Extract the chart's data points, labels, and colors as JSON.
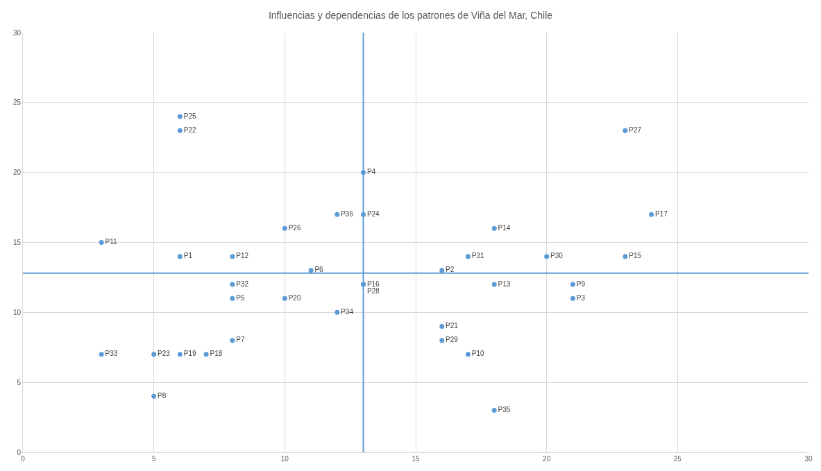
{
  "chart_data": {
    "type": "scatter",
    "title": "Influencias y dependencias de los patrones de Viña del Mar, Chile",
    "x": [
      6,
      16,
      21,
      13,
      8,
      11,
      8,
      5,
      21,
      17,
      3,
      8,
      18,
      18,
      23,
      13,
      24,
      7,
      6,
      10,
      16,
      6,
      5,
      13,
      6,
      10,
      23,
      13,
      16,
      20,
      17,
      8,
      3,
      12,
      18,
      12
    ],
    "values": [
      14,
      13,
      11,
      20,
      11,
      13,
      8,
      4,
      12,
      7,
      15,
      14,
      12,
      16,
      14,
      12,
      17,
      7,
      7,
      11,
      9,
      23,
      7,
      17,
      24,
      16,
      23,
      12,
      8,
      14,
      14,
      12,
      7,
      10,
      3,
      17
    ],
    "value_labels": [
      "P1",
      "P2",
      "P3",
      "P4",
      "P5",
      "P6",
      "P7",
      "P8",
      "P9",
      "P10",
      "P11",
      "P12",
      "P13",
      "P14",
      "P15",
      "P16",
      "P17",
      "P18",
      "P19",
      "P20",
      "P21",
      "P22",
      "P23",
      "P24",
      "P25",
      "P26",
      "P27",
      "P28",
      "P29",
      "P30",
      "P31",
      "P32",
      "P33",
      "P34",
      "P35",
      "P36"
    ],
    "color": "#5b9bd5",
    "marker": "circle",
    "xlim": [
      0,
      30
    ],
    "xticks": [
      0,
      5,
      10,
      15,
      20,
      25,
      30
    ],
    "ylim": [
      0,
      30
    ],
    "yticks": [
      0,
      5,
      10,
      15,
      20,
      25,
      30
    ],
    "ref_lines": [
      {
        "axis": "x",
        "value": 13,
        "color": "#5b9bd5"
      },
      {
        "axis": "y",
        "value": 12.8,
        "color": "#5b9bd5"
      }
    ],
    "grid": true
  }
}
